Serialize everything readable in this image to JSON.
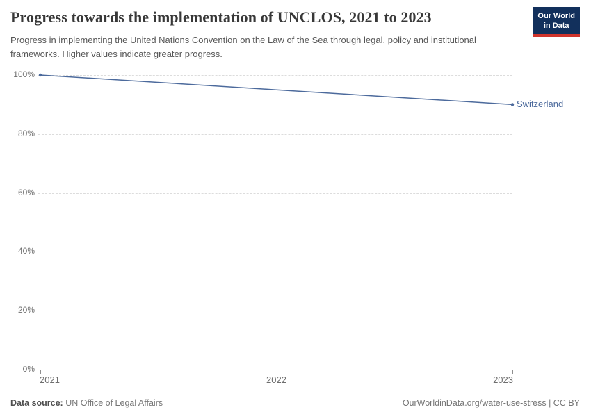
{
  "header": {
    "title": "Progress towards the implementation of UNCLOS, 2021 to 2023",
    "subtitle": "Progress in implementing the United Nations Convention on the Law of the Sea through legal, policy and institutional frameworks. Higher values indicate greater progress.",
    "logo": {
      "line1": "Our World",
      "line2": "in Data",
      "bg_color": "#12305c",
      "accent_color": "#d0342c"
    }
  },
  "chart_data": {
    "type": "line",
    "title": "Progress towards the implementation of UNCLOS, 2021 to 2023",
    "x": [
      2021,
      2022,
      2023
    ],
    "series": [
      {
        "name": "Switzerland",
        "values": [
          100,
          95,
          90
        ],
        "color": "#4c6a9c"
      }
    ],
    "xlabel": "",
    "ylabel": "",
    "ylim": [
      0,
      100
    ],
    "yticks": [
      0,
      20,
      40,
      60,
      80,
      100
    ],
    "ytick_format": "{}%",
    "grid": "horizontal-dashed",
    "legend": "end-of-line-label"
  },
  "footer": {
    "source_label": "Data source:",
    "source_value": "UN Office of Legal Affairs",
    "link": "OurWorldinData.org/water-use-stress | CC BY"
  }
}
